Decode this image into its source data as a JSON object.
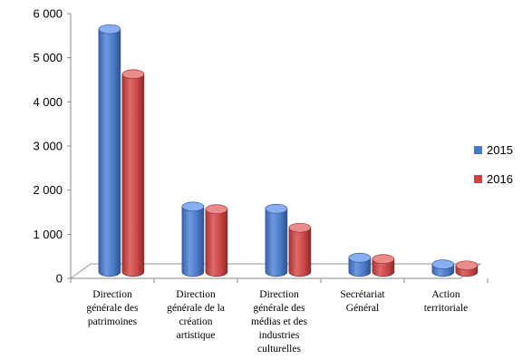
{
  "chart_data": {
    "type": "bar",
    "style": "3d-cylinder",
    "categories": [
      "Direction générale des patrimoines",
      "Direction générale de la création artistique",
      "Direction générale des médias et des industries culturelles",
      "Secrétariat Général",
      "Action territoriale"
    ],
    "categories_display": [
      [
        "Direction",
        "générale des",
        "patrimoines"
      ],
      [
        "Direction",
        "générale de la",
        "création",
        "artistique"
      ],
      [
        "Direction",
        "générale des",
        "médias et des",
        "industries",
        "culturelles"
      ],
      [
        "Secrétariat",
        "Général"
      ],
      [
        "Action",
        "territoriale"
      ]
    ],
    "series": [
      {
        "name": "2015",
        "color": "#4a78c8",
        "values": [
          5500,
          1480,
          1430,
          320,
          170
        ]
      },
      {
        "name": "2016",
        "color": "#c94444",
        "values": [
          4480,
          1420,
          1000,
          290,
          145
        ]
      }
    ],
    "ylim": [
      0,
      6000
    ],
    "yticks": [
      0,
      1000,
      2000,
      3000,
      4000,
      5000,
      6000
    ],
    "ytick_labels": [
      "0",
      "1 000",
      "2 000",
      "3 000",
      "4 000",
      "5 000",
      "6 000"
    ],
    "title": "",
    "xlabel": "",
    "ylabel": "",
    "grid": false,
    "legend_position": "right"
  }
}
